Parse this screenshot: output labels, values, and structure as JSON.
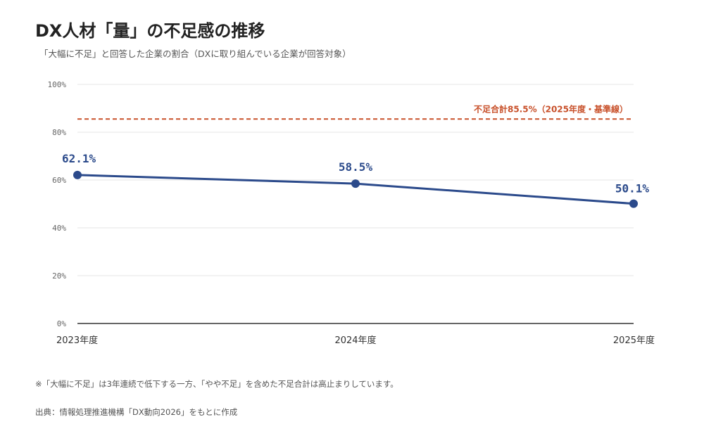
{
  "header": {
    "title": "DX人材「量」の不足感の推移",
    "subtitle": "「大幅に不足」と回答した企業の割合（DXに取り組んでいる企業が回答対象）"
  },
  "footer": {
    "note": "※「大幅に不足」は3年連続で低下する一方、「やや不足」を含めた不足合計は高止まりしています。",
    "source": "出典：情報処理推進機構「DX動向2026」をもとに作成"
  },
  "colors": {
    "series": "#2b4a8b",
    "reference": "#c8502a",
    "grid": "#e6e6e6",
    "axis": "#333333",
    "tick_text": "#666666"
  },
  "chart_data": {
    "type": "line",
    "categories": [
      "2023年度",
      "2024年度",
      "2025年度"
    ],
    "series": [
      {
        "values": [
          62.1,
          58.5,
          50.1
        ],
        "data_labels": [
          "62.1%",
          "58.5%",
          "50.1%"
        ]
      }
    ],
    "yticks": [
      "0%",
      "20%",
      "40%",
      "60%",
      "80%",
      "100%"
    ],
    "ylim": [
      0,
      100
    ],
    "grid": true,
    "reference_line": {
      "value": 85.5,
      "label": "不足合計85.5%（2025年度・基準線）",
      "style": "dashed"
    }
  }
}
